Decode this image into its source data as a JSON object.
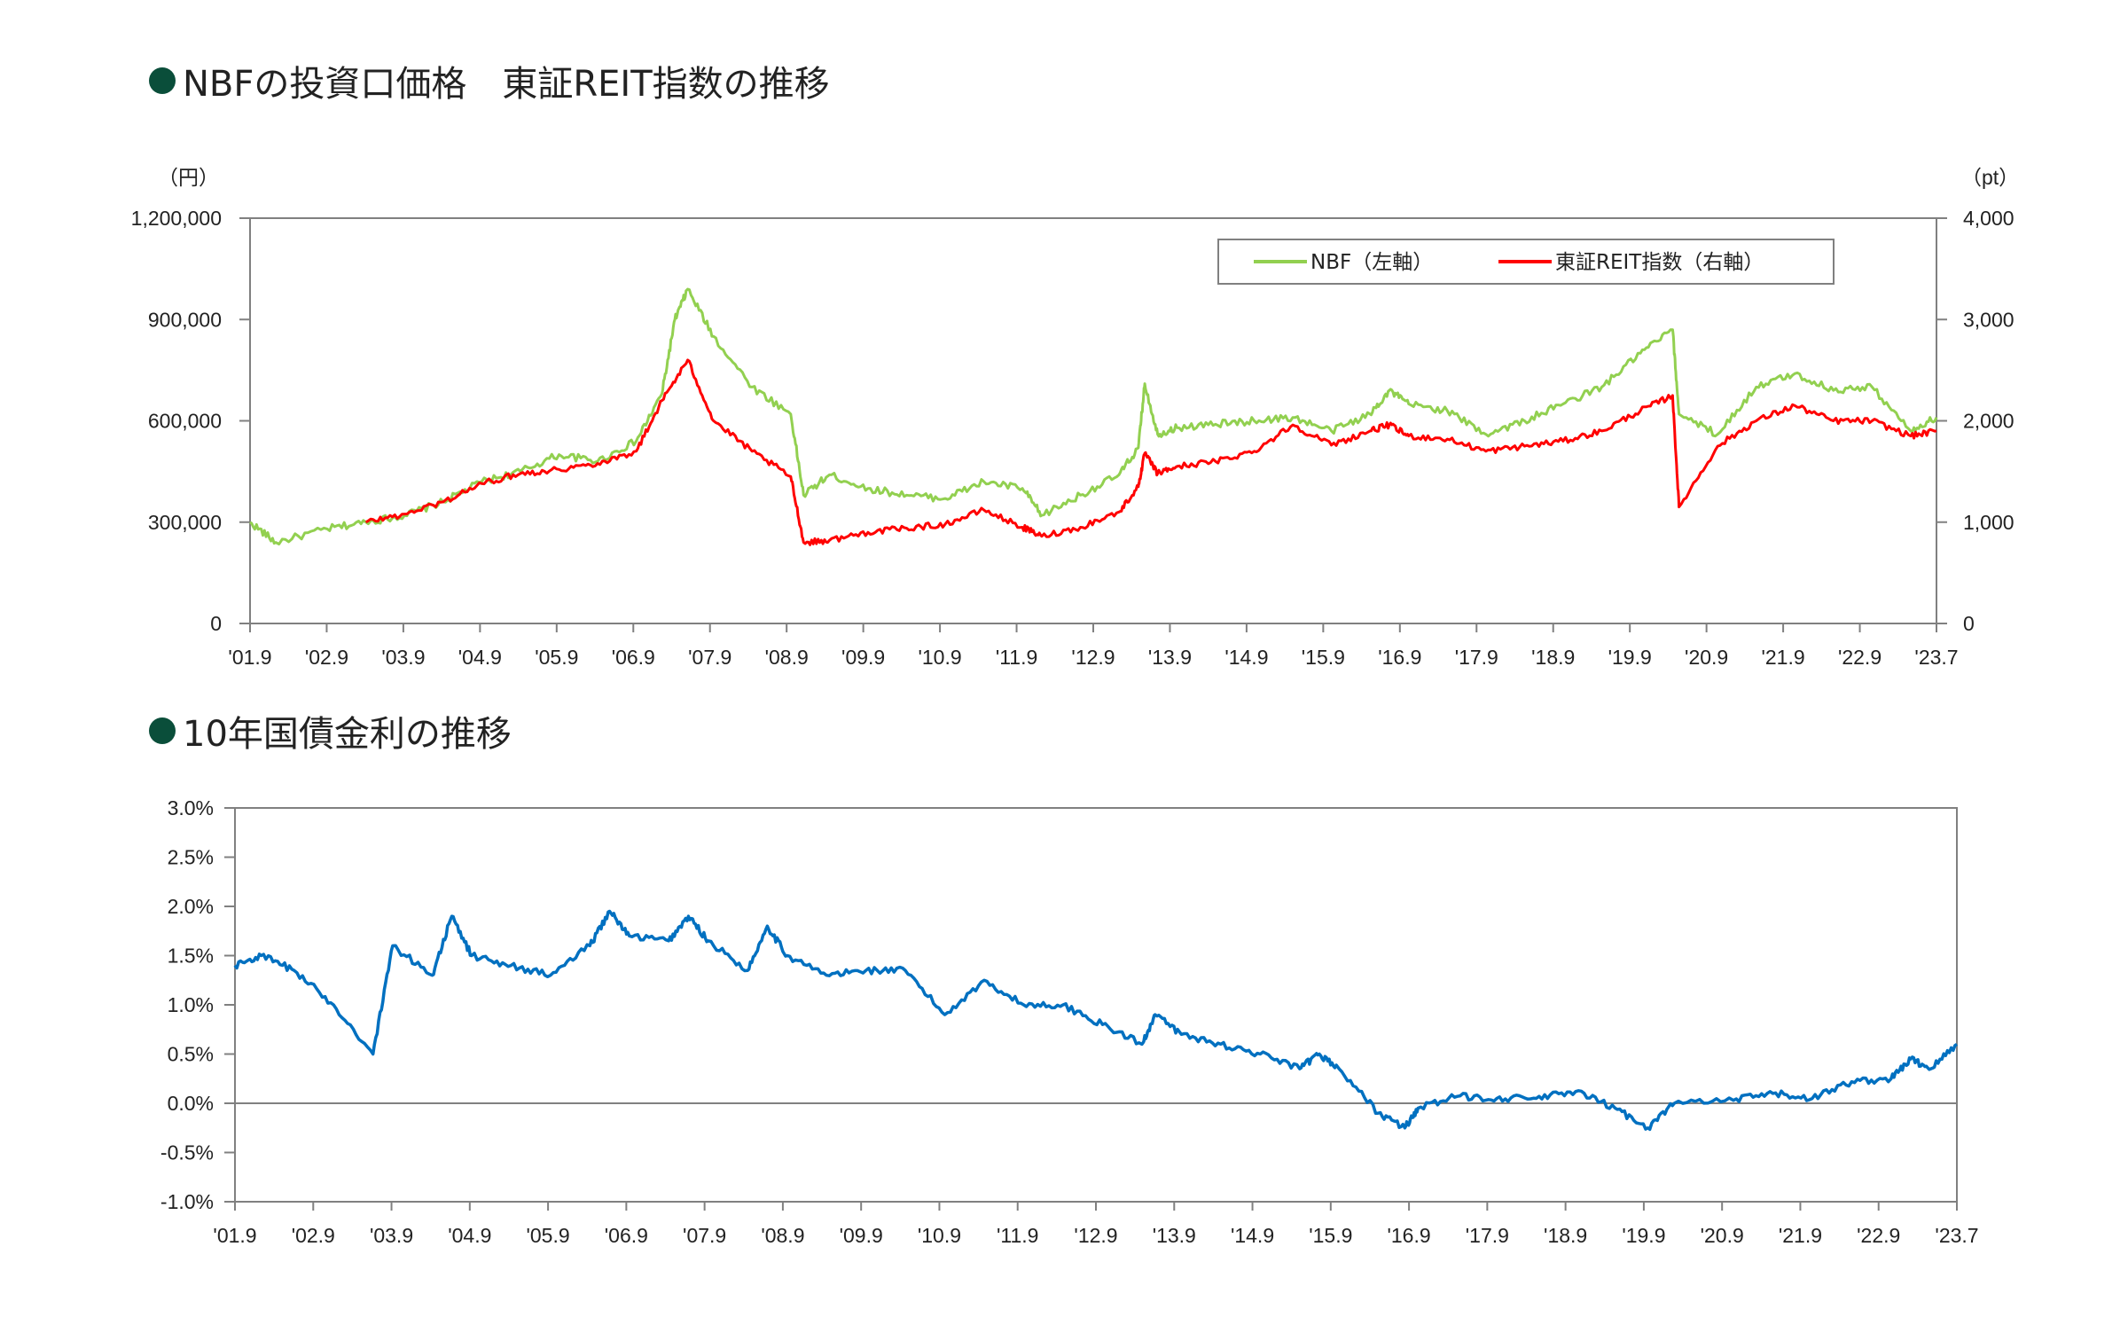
{
  "titles": {
    "top": "NBFの投資口価格　東証REIT指数の推移",
    "bottom": "10年国債金利の推移"
  },
  "colors": {
    "bullet": "#0a4e3a",
    "nbf": "#92d050",
    "reit": "#ff0000",
    "jgb": "#0070c0",
    "axis": "#808080"
  },
  "chart_data": [
    {
      "type": "line",
      "title": "NBFの投資口価格　東証REIT指数の推移",
      "left_axis": {
        "unit": "（円）",
        "ylim": [
          0,
          1200000
        ],
        "ticks": [
          "0",
          "300,000",
          "600,000",
          "900,000",
          "1,200,000"
        ]
      },
      "right_axis": {
        "unit": "（pt）",
        "ylim": [
          0,
          4000
        ],
        "ticks": [
          "0",
          "1,000",
          "2,000",
          "3,000",
          "4,000"
        ]
      },
      "x_ticks": [
        "'01.9",
        "'02.9",
        "'03.9",
        "'04.9",
        "'05.9",
        "'06.9",
        "'07.9",
        "'08.9",
        "'09.9",
        "'10.9",
        "'11.9",
        "'12.9",
        "'13.9",
        "'14.9",
        "'15.9",
        "'16.9",
        "'17.9",
        "'18.9",
        "'19.9",
        "'20.9",
        "'21.9",
        "'22.9",
        "'23.7"
      ],
      "x_range": [
        "2001-09",
        "2023-07"
      ],
      "legend": {
        "position": "top-right",
        "entries": [
          "NBF（左軸）",
          "東証REIT指数（右軸）"
        ]
      },
      "series": [
        {
          "name": "NBF（左軸）",
          "axis": "left",
          "points": [
            [
              "2001-09",
              300000
            ],
            [
              "2002-01",
              240000
            ],
            [
              "2002-09",
              280000
            ],
            [
              "2003-03",
              300000
            ],
            [
              "2003-09",
              320000
            ],
            [
              "2004-03",
              360000
            ],
            [
              "2004-09",
              420000
            ],
            [
              "2005-03",
              450000
            ],
            [
              "2005-09",
              500000
            ],
            [
              "2006-03",
              480000
            ],
            [
              "2006-09",
              540000
            ],
            [
              "2007-01",
              680000
            ],
            [
              "2007-03",
              900000
            ],
            [
              "2007-05",
              990000
            ],
            [
              "2007-09",
              850000
            ],
            [
              "2008-03",
              700000
            ],
            [
              "2008-09",
              620000
            ],
            [
              "2008-11",
              380000
            ],
            [
              "2009-03",
              440000
            ],
            [
              "2009-09",
              400000
            ],
            [
              "2010-03",
              380000
            ],
            [
              "2010-09",
              370000
            ],
            [
              "2011-03",
              420000
            ],
            [
              "2011-09",
              400000
            ],
            [
              "2011-12",
              320000
            ],
            [
              "2012-06",
              380000
            ],
            [
              "2012-12",
              440000
            ],
            [
              "2013-03",
              520000
            ],
            [
              "2013-04",
              710000
            ],
            [
              "2013-06",
              560000
            ],
            [
              "2013-09",
              580000
            ],
            [
              "2014-03",
              590000
            ],
            [
              "2014-09",
              600000
            ],
            [
              "2015-03",
              610000
            ],
            [
              "2015-09",
              570000
            ],
            [
              "2016-03",
              620000
            ],
            [
              "2016-06",
              690000
            ],
            [
              "2016-09",
              650000
            ],
            [
              "2017-03",
              630000
            ],
            [
              "2017-09",
              560000
            ],
            [
              "2018-03",
              600000
            ],
            [
              "2018-09",
              650000
            ],
            [
              "2019-03",
              700000
            ],
            [
              "2019-09",
              800000
            ],
            [
              "2020-02",
              870000
            ],
            [
              "2020-03",
              620000
            ],
            [
              "2020-09",
              560000
            ],
            [
              "2021-03",
              700000
            ],
            [
              "2021-09",
              740000
            ],
            [
              "2022-03",
              690000
            ],
            [
              "2022-09",
              700000
            ],
            [
              "2023-03",
              570000
            ],
            [
              "2023-07",
              610000
            ]
          ]
        },
        {
          "name": "東証REIT指数（右軸）",
          "axis": "right",
          "points": [
            [
              "2003-03",
              1000
            ],
            [
              "2003-09",
              1080
            ],
            [
              "2004-03",
              1200
            ],
            [
              "2004-09",
              1380
            ],
            [
              "2005-03",
              1480
            ],
            [
              "2005-09",
              1520
            ],
            [
              "2006-03",
              1580
            ],
            [
              "2006-09",
              1700
            ],
            [
              "2007-01",
              2200
            ],
            [
              "2007-05",
              2600
            ],
            [
              "2007-09",
              2000
            ],
            [
              "2008-03",
              1700
            ],
            [
              "2008-09",
              1450
            ],
            [
              "2008-11",
              800
            ],
            [
              "2009-03",
              820
            ],
            [
              "2009-09",
              900
            ],
            [
              "2010-03",
              940
            ],
            [
              "2010-09",
              980
            ],
            [
              "2011-03",
              1120
            ],
            [
              "2011-09",
              950
            ],
            [
              "2011-12",
              860
            ],
            [
              "2012-06",
              950
            ],
            [
              "2012-12",
              1100
            ],
            [
              "2013-03",
              1350
            ],
            [
              "2013-04",
              1680
            ],
            [
              "2013-06",
              1480
            ],
            [
              "2013-09",
              1550
            ],
            [
              "2014-03",
              1600
            ],
            [
              "2014-09",
              1700
            ],
            [
              "2015-03",
              1960
            ],
            [
              "2015-09",
              1760
            ],
            [
              "2016-03",
              1900
            ],
            [
              "2016-06",
              1960
            ],
            [
              "2016-09",
              1850
            ],
            [
              "2017-03",
              1820
            ],
            [
              "2017-09",
              1700
            ],
            [
              "2018-03",
              1750
            ],
            [
              "2018-09",
              1800
            ],
            [
              "2019-03",
              1900
            ],
            [
              "2019-09",
              2100
            ],
            [
              "2020-02",
              2250
            ],
            [
              "2020-03",
              1150
            ],
            [
              "2020-09",
              1750
            ],
            [
              "2021-03",
              2000
            ],
            [
              "2021-09",
              2150
            ],
            [
              "2022-03",
              2000
            ],
            [
              "2022-09",
              2000
            ],
            [
              "2023-03",
              1850
            ],
            [
              "2023-07",
              1900
            ]
          ]
        }
      ]
    },
    {
      "type": "line",
      "title": "10年国債金利の推移",
      "ylim": [
        -1.0,
        3.0
      ],
      "y_ticks": [
        "-1.0%",
        "-0.5%",
        "0.0%",
        "0.5%",
        "1.0%",
        "1.5%",
        "2.0%",
        "2.5%",
        "3.0%"
      ],
      "x_ticks": [
        "'01.9",
        "'02.9",
        "'03.9",
        "'04.9",
        "'05.9",
        "'06.9",
        "'07.9",
        "'08.9",
        "'09.9",
        "'10.9",
        "'11.9",
        "'12.9",
        "'13.9",
        "'14.9",
        "'15.9",
        "'16.9",
        "'17.9",
        "'18.9",
        "'19.9",
        "'20.9",
        "'21.9",
        "'22.9",
        "'23.7"
      ],
      "x_range": [
        "2001-09",
        "2023-07"
      ],
      "series": [
        {
          "points": [
            [
              "2001-09",
              1.4
            ],
            [
              "2002-01",
              1.5
            ],
            [
              "2002-06",
              1.35
            ],
            [
              "2002-12",
              1.0
            ],
            [
              "2003-06",
              0.5
            ],
            [
              "2003-09",
              1.6
            ],
            [
              "2004-03",
              1.3
            ],
            [
              "2004-06",
              1.9
            ],
            [
              "2004-09",
              1.5
            ],
            [
              "2005-03",
              1.4
            ],
            [
              "2005-09",
              1.3
            ],
            [
              "2006-03",
              1.6
            ],
            [
              "2006-06",
              1.95
            ],
            [
              "2006-09",
              1.7
            ],
            [
              "2007-03",
              1.65
            ],
            [
              "2007-06",
              1.9
            ],
            [
              "2007-09",
              1.65
            ],
            [
              "2008-03",
              1.35
            ],
            [
              "2008-06",
              1.8
            ],
            [
              "2008-09",
              1.5
            ],
            [
              "2009-03",
              1.3
            ],
            [
              "2009-09",
              1.35
            ],
            [
              "2010-03",
              1.35
            ],
            [
              "2010-09",
              0.9
            ],
            [
              "2011-03",
              1.25
            ],
            [
              "2011-09",
              1.0
            ],
            [
              "2012-03",
              1.0
            ],
            [
              "2012-09",
              0.8
            ],
            [
              "2013-03",
              0.6
            ],
            [
              "2013-05",
              0.9
            ],
            [
              "2013-09",
              0.7
            ],
            [
              "2014-03",
              0.6
            ],
            [
              "2014-09",
              0.5
            ],
            [
              "2015-03",
              0.35
            ],
            [
              "2015-06",
              0.5
            ],
            [
              "2015-09",
              0.35
            ],
            [
              "2016-03",
              -0.1
            ],
            [
              "2016-07",
              -0.25
            ],
            [
              "2016-09",
              -0.05
            ],
            [
              "2017-03",
              0.07
            ],
            [
              "2017-09",
              0.05
            ],
            [
              "2018-03",
              0.05
            ],
            [
              "2018-09",
              0.12
            ],
            [
              "2019-03",
              -0.05
            ],
            [
              "2019-08",
              -0.25
            ],
            [
              "2019-12",
              0.0
            ],
            [
              "2020-09",
              0.03
            ],
            [
              "2021-03",
              0.1
            ],
            [
              "2021-09",
              0.05
            ],
            [
              "2022-03",
              0.22
            ],
            [
              "2022-09",
              0.25
            ],
            [
              "2022-12",
              0.45
            ],
            [
              "2023-03",
              0.35
            ],
            [
              "2023-07",
              0.6
            ]
          ]
        }
      ]
    }
  ]
}
